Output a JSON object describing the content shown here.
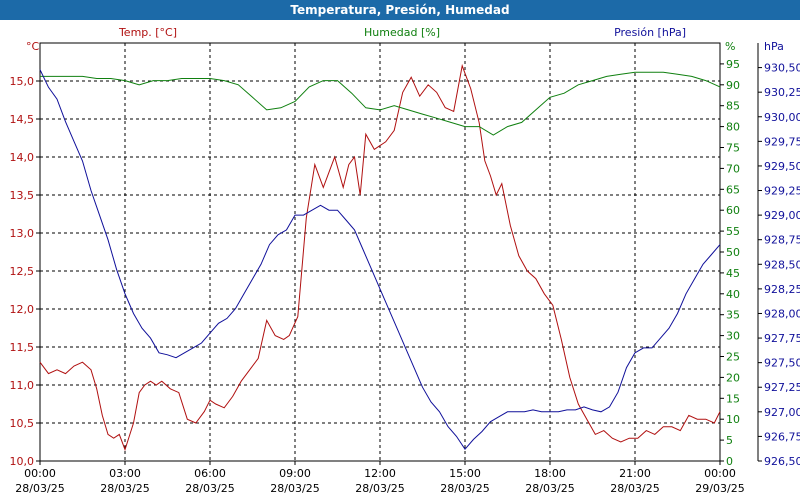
{
  "title": "Temperatura, Presión, Humedad",
  "chart_data": {
    "type": "line",
    "title": "Temperatura, Presión, Humedad",
    "grid": true,
    "x_tick_times": [
      "00:00",
      "03:00",
      "06:00",
      "09:00",
      "12:00",
      "15:00",
      "18:00",
      "21:00",
      "00:00"
    ],
    "x_tick_dates": [
      "28/03/25",
      "28/03/25",
      "28/03/25",
      "28/03/25",
      "28/03/25",
      "28/03/25",
      "28/03/25",
      "28/03/25",
      "29/03/25"
    ],
    "x_range_hours": [
      0,
      24
    ],
    "axes": {
      "temp": {
        "label": "Temp. [°C]",
        "unit": "°C",
        "range": [
          10.0,
          15.5
        ],
        "ticks": [
          "10,0",
          "10,5",
          "11,0",
          "11,5",
          "12,0",
          "12,5",
          "13,0",
          "13,5",
          "14,0",
          "14,5",
          "15,0"
        ],
        "color": "#b01010",
        "side": "left"
      },
      "hum": {
        "label": "Humedad [%]",
        "unit": "%",
        "range": [
          0,
          100
        ],
        "ticks": [
          "0",
          "5",
          "10",
          "15",
          "20",
          "25",
          "30",
          "35",
          "40",
          "45",
          "50",
          "55",
          "60",
          "65",
          "70",
          "75",
          "80",
          "85",
          "90",
          "95"
        ],
        "color": "#108010",
        "side": "right-inner"
      },
      "pres": {
        "label": "Presión [hPa]",
        "unit": "hPa",
        "range": [
          926.5,
          930.75
        ],
        "ticks": [
          "926,50",
          "926,75",
          "927,00",
          "927,25",
          "927,50",
          "927,75",
          "928,00",
          "928,25",
          "928,50",
          "928,75",
          "929,00",
          "929,25",
          "929,50",
          "929,75",
          "930,00",
          "930,25",
          "930,50"
        ],
        "color": "#10109a",
        "side": "right-outer"
      }
    },
    "series": [
      {
        "name": "Temp. [°C]",
        "axis": "temp",
        "x": [
          0,
          0.3,
          0.6,
          0.9,
          1.2,
          1.5,
          1.8,
          2.0,
          2.2,
          2.4,
          2.6,
          2.8,
          3.0,
          3.3,
          3.5,
          3.7,
          3.9,
          4.1,
          4.3,
          4.6,
          4.9,
          5.2,
          5.5,
          5.8,
          6.0,
          6.2,
          6.5,
          6.8,
          7.1,
          7.4,
          7.7,
          8.0,
          8.3,
          8.6,
          8.8,
          9.1,
          9.4,
          9.7,
          10.0,
          10.2,
          10.4,
          10.7,
          10.9,
          11.1,
          11.3,
          11.5,
          11.8,
          12.0,
          12.2,
          12.5,
          12.8,
          13.1,
          13.4,
          13.7,
          14.0,
          14.3,
          14.6,
          14.9,
          15.2,
          15.5,
          15.7,
          15.9,
          16.1,
          16.3,
          16.6,
          16.9,
          17.2,
          17.5,
          17.8,
          18.1,
          18.4,
          18.7,
          19.0,
          19.3,
          19.6,
          19.9,
          20.2,
          20.5,
          20.8,
          21.1,
          21.4,
          21.7,
          22.0,
          22.3,
          22.6,
          22.9,
          23.2,
          23.5,
          23.8,
          24.0
        ],
        "y": [
          11.3,
          11.15,
          11.2,
          11.15,
          11.25,
          11.3,
          11.2,
          10.95,
          10.6,
          10.35,
          10.3,
          10.35,
          10.15,
          10.5,
          10.9,
          11.0,
          11.05,
          11.0,
          11.05,
          10.95,
          10.9,
          10.55,
          10.5,
          10.65,
          10.8,
          10.75,
          10.7,
          10.85,
          11.05,
          11.2,
          11.35,
          11.85,
          11.65,
          11.6,
          11.65,
          11.9,
          13.2,
          13.9,
          13.6,
          13.8,
          14.0,
          13.6,
          13.9,
          14.0,
          13.5,
          14.3,
          14.1,
          14.15,
          14.2,
          14.35,
          14.85,
          15.05,
          14.8,
          14.95,
          14.85,
          14.65,
          14.6,
          15.2,
          14.9,
          14.45,
          13.95,
          13.75,
          13.5,
          13.65,
          13.1,
          12.7,
          12.5,
          12.4,
          12.2,
          12.05,
          11.6,
          11.1,
          10.75,
          10.55,
          10.35,
          10.4,
          10.3,
          10.25,
          10.3,
          10.3,
          10.4,
          10.35,
          10.45,
          10.45,
          10.4,
          10.6,
          10.55,
          10.55,
          10.5,
          10.65
        ]
      },
      {
        "name": "Humedad [%]",
        "axis": "hum",
        "x": [
          0,
          0.5,
          1.0,
          1.5,
          2.0,
          2.5,
          3.0,
          3.5,
          4.0,
          4.5,
          5.0,
          5.5,
          6.0,
          6.5,
          7.0,
          7.5,
          8.0,
          8.5,
          9.0,
          9.5,
          10.0,
          10.5,
          11.0,
          11.5,
          12.0,
          12.5,
          13.0,
          13.5,
          14.0,
          14.5,
          15.0,
          15.5,
          16.0,
          16.5,
          17.0,
          17.5,
          18.0,
          18.5,
          19.0,
          19.5,
          20.0,
          20.5,
          21.0,
          21.5,
          22.0,
          22.5,
          23.0,
          23.5,
          24.0
        ],
        "y": [
          92,
          92,
          92,
          92,
          91.5,
          91.5,
          91,
          90,
          91,
          91,
          91.5,
          91.5,
          91.5,
          91,
          90,
          87,
          84,
          84.5,
          86,
          89.5,
          91,
          91,
          88,
          84.5,
          84,
          85,
          84,
          83,
          82,
          81,
          80,
          80,
          78,
          80,
          81,
          84,
          87,
          88,
          90,
          91,
          92,
          92.5,
          93,
          93,
          93,
          92.5,
          92,
          91,
          89.5
        ]
      },
      {
        "name": "Presión [hPa]",
        "axis": "pres",
        "x": [
          0,
          0.3,
          0.6,
          0.9,
          1.2,
          1.5,
          1.8,
          2.1,
          2.4,
          2.7,
          3.0,
          3.3,
          3.6,
          3.9,
          4.2,
          4.5,
          4.8,
          5.1,
          5.4,
          5.7,
          6.0,
          6.3,
          6.6,
          6.9,
          7.2,
          7.5,
          7.8,
          8.1,
          8.4,
          8.7,
          9.0,
          9.3,
          9.6,
          9.9,
          10.2,
          10.5,
          10.8,
          11.1,
          11.4,
          11.7,
          12.0,
          12.3,
          12.6,
          12.9,
          13.2,
          13.5,
          13.8,
          14.1,
          14.4,
          14.7,
          15.0,
          15.3,
          15.6,
          15.9,
          16.2,
          16.5,
          16.8,
          17.1,
          17.4,
          17.7,
          18.0,
          18.3,
          18.6,
          18.9,
          19.2,
          19.5,
          19.8,
          20.1,
          20.4,
          20.7,
          21.0,
          21.3,
          21.6,
          21.9,
          22.2,
          22.5,
          22.8,
          23.1,
          23.4,
          23.7,
          24.0
        ],
        "y": [
          930.48,
          930.3,
          930.18,
          929.95,
          929.75,
          929.55,
          929.25,
          929.0,
          928.75,
          928.45,
          928.2,
          928.0,
          927.85,
          927.75,
          927.6,
          927.58,
          927.55,
          927.6,
          927.65,
          927.7,
          927.8,
          927.9,
          927.95,
          928.05,
          928.2,
          928.35,
          928.5,
          928.7,
          928.8,
          928.85,
          929.0,
          929.0,
          929.05,
          929.1,
          929.05,
          929.05,
          928.95,
          928.85,
          928.65,
          928.45,
          928.25,
          928.05,
          927.85,
          927.65,
          927.45,
          927.25,
          927.1,
          927.0,
          926.85,
          926.75,
          926.62,
          926.72,
          926.8,
          926.9,
          926.95,
          927.0,
          927.0,
          927.0,
          927.02,
          927.0,
          927.0,
          927.0,
          927.02,
          927.02,
          927.05,
          927.02,
          927.0,
          927.05,
          927.2,
          927.45,
          927.6,
          927.65,
          927.65,
          927.75,
          927.85,
          928.0,
          928.2,
          928.35,
          928.5,
          928.6,
          928.7
        ]
      }
    ]
  }
}
